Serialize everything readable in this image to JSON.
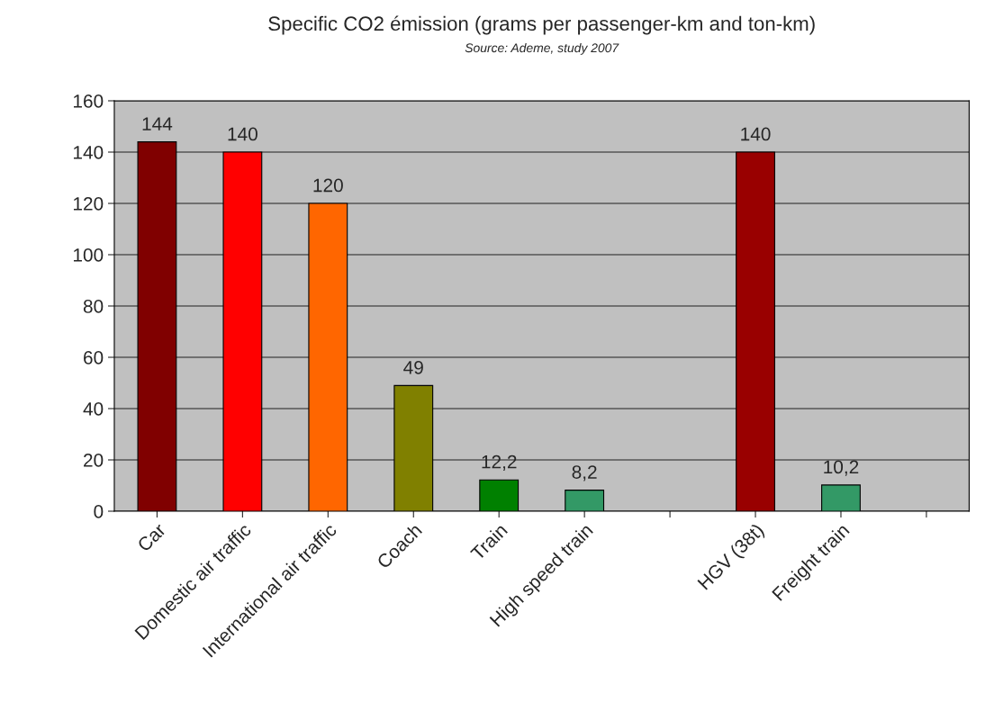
{
  "chart_data": {
    "type": "bar",
    "title": "Specific CO2 émission (grams per passenger-km and ton-km)",
    "annotations": [
      "Source: Ademe, study 2007"
    ],
    "categories": [
      "Car",
      "Domestic air traffic",
      "International air traffic",
      "Coach",
      "Train",
      "High speed train",
      null,
      "HGV (38t)",
      "Freight train",
      null
    ],
    "values": [
      144,
      140,
      120,
      49,
      12.2,
      8.2,
      null,
      140,
      10.2,
      null
    ],
    "value_labels": [
      "144",
      "140",
      "120",
      "49",
      "12,2",
      "8,2",
      null,
      "140",
      "10,2",
      null
    ],
    "colors": [
      "#800000",
      "#ff0000",
      "#ff6600",
      "#808000",
      "#008000",
      "#339966",
      null,
      "#990000",
      "#339966",
      null
    ],
    "ylim": [
      0,
      160
    ],
    "yticks": [
      0,
      20,
      40,
      60,
      80,
      100,
      120,
      140,
      160
    ],
    "grid": "y"
  }
}
